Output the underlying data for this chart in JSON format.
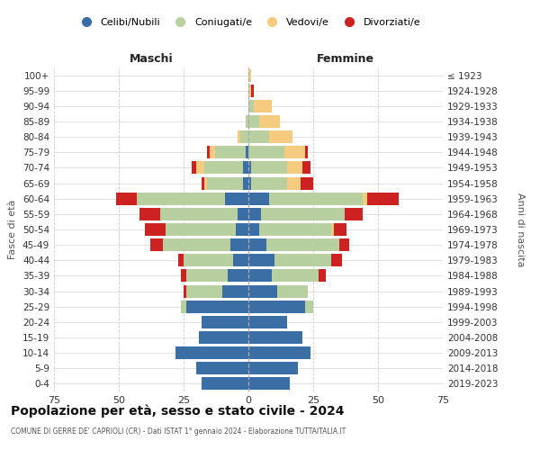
{
  "age_groups": [
    "0-4",
    "5-9",
    "10-14",
    "15-19",
    "20-24",
    "25-29",
    "30-34",
    "35-39",
    "40-44",
    "45-49",
    "50-54",
    "55-59",
    "60-64",
    "65-69",
    "70-74",
    "75-79",
    "80-84",
    "85-89",
    "90-94",
    "95-99",
    "100+"
  ],
  "birth_years": [
    "2019-2023",
    "2014-2018",
    "2009-2013",
    "2004-2008",
    "1999-2003",
    "1994-1998",
    "1989-1993",
    "1984-1988",
    "1979-1983",
    "1974-1978",
    "1969-1973",
    "1964-1968",
    "1959-1963",
    "1954-1958",
    "1949-1953",
    "1944-1948",
    "1939-1943",
    "1934-1938",
    "1929-1933",
    "1924-1928",
    "≤ 1923"
  ],
  "colors": {
    "celibi": "#3a6ea5",
    "coniugati": "#b8cfa0",
    "vedovi": "#f5cc7f",
    "divorziati": "#cc2222"
  },
  "maschi": {
    "celibi": [
      18,
      20,
      28,
      19,
      18,
      24,
      10,
      8,
      6,
      7,
      5,
      4,
      9,
      2,
      2,
      1,
      0,
      0,
      0,
      0,
      0
    ],
    "coniugati": [
      0,
      0,
      0,
      0,
      0,
      2,
      14,
      16,
      19,
      26,
      27,
      30,
      34,
      14,
      15,
      12,
      3,
      1,
      0,
      0,
      0
    ],
    "vedovi": [
      0,
      0,
      0,
      0,
      0,
      0,
      0,
      0,
      0,
      0,
      0,
      0,
      0,
      1,
      3,
      2,
      1,
      0,
      0,
      0,
      0
    ],
    "divorziati": [
      0,
      0,
      0,
      0,
      0,
      0,
      1,
      2,
      2,
      5,
      8,
      8,
      8,
      1,
      2,
      1,
      0,
      0,
      0,
      0,
      0
    ]
  },
  "femmine": {
    "celibi": [
      16,
      19,
      24,
      21,
      15,
      22,
      11,
      9,
      10,
      7,
      4,
      5,
      8,
      1,
      1,
      0,
      0,
      0,
      0,
      0,
      0
    ],
    "coniugati": [
      0,
      0,
      0,
      0,
      0,
      3,
      12,
      18,
      22,
      28,
      28,
      32,
      36,
      14,
      14,
      14,
      8,
      4,
      2,
      0,
      0
    ],
    "vedovi": [
      0,
      0,
      0,
      0,
      0,
      0,
      0,
      0,
      0,
      0,
      1,
      0,
      2,
      5,
      6,
      8,
      9,
      8,
      7,
      1,
      1
    ],
    "divorziati": [
      0,
      0,
      0,
      0,
      0,
      0,
      0,
      3,
      4,
      4,
      5,
      7,
      12,
      5,
      3,
      1,
      0,
      0,
      0,
      1,
      0
    ]
  },
  "xlim": 75,
  "title": "Popolazione per età, sesso e stato civile - 2024",
  "subtitle": "COMUNE DI GERRE DE' CAPRIOLI (CR) - Dati ISTAT 1° gennaio 2024 - Elaborazione TUTTAITALIA.IT",
  "xlabel_left": "Maschi",
  "xlabel_right": "Femmine",
  "ylabel_left": "Fasce di età",
  "ylabel_right": "Anni di nascita",
  "bg_color": "#ffffff",
  "grid_color": "#cccccc"
}
